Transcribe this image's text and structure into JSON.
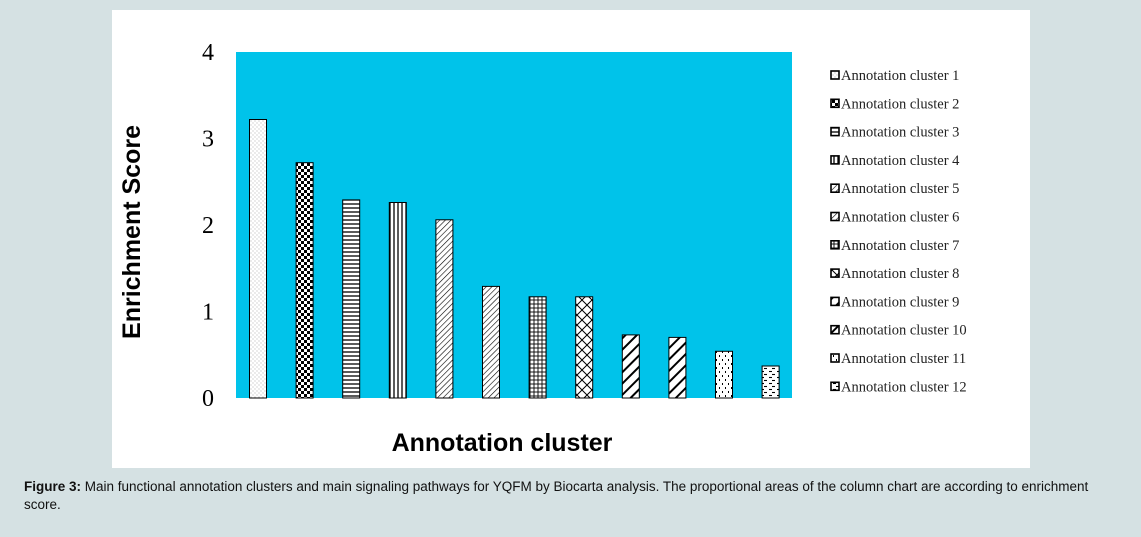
{
  "caption": {
    "label": "Figure 3:",
    "text": " Main functional annotation clusters and main signaling pathways for YQFM by Biocarta analysis. The proportional areas of the column chart are according to enrichment score."
  },
  "colors": {
    "plot_background": "#00c3ea",
    "bar_fill": "#ffffff",
    "bar_pattern": "#000000",
    "frame_background": "#d5e1e3"
  },
  "chart_data": {
    "type": "bar",
    "title": "",
    "xlabel": "Annotation cluster",
    "ylabel": "Enrichment Score",
    "ylim": [
      0,
      4
    ],
    "yticks": [
      0,
      1,
      2,
      3,
      4
    ],
    "grid": false,
    "legend_position": "right",
    "categories": [
      "Annotation cluster 1",
      "Annotation cluster 2",
      "Annotation cluster 3",
      "Annotation cluster 4",
      "Annotation cluster 5",
      "Annotation cluster 6",
      "Annotation cluster 7",
      "Annotation cluster 8",
      "Annotation cluster 9",
      "Annotation cluster 10",
      "Annotation cluster 11",
      "Annotation cluster 12"
    ],
    "values": [
      3.22,
      2.72,
      2.29,
      2.26,
      2.06,
      1.29,
      1.17,
      1.17,
      0.73,
      0.7,
      0.54,
      0.37
    ],
    "patterns": [
      "dots",
      "checker",
      "hlines",
      "vlines",
      "diag-fine",
      "diag-fine",
      "grid",
      "zigzag",
      "diag-wide",
      "diag-wide",
      "dashes",
      "dashes-h"
    ]
  }
}
